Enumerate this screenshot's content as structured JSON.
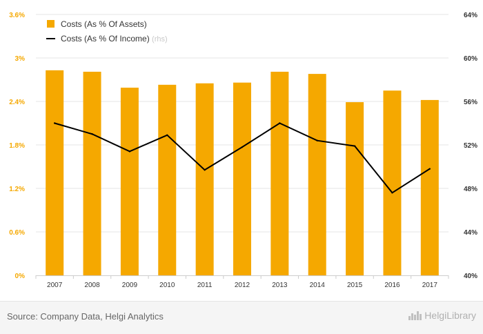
{
  "chart_data": {
    "type": "bar",
    "categories": [
      "2007",
      "2008",
      "2009",
      "2010",
      "2011",
      "2012",
      "2013",
      "2014",
      "2015",
      "2016",
      "2017"
    ],
    "series": [
      {
        "name": "Costs (As % Of Assets)",
        "type": "bar",
        "axis": "left",
        "color": "#f5a800",
        "values": [
          2.83,
          2.81,
          2.59,
          2.63,
          2.65,
          2.66,
          2.81,
          2.78,
          2.39,
          2.55,
          2.42
        ]
      },
      {
        "name": "Costs (As % Of Income)",
        "name_note": "(rhs)",
        "type": "line",
        "axis": "right",
        "color": "#000000",
        "values": [
          54.0,
          53.0,
          51.4,
          52.9,
          49.7,
          51.8,
          54.0,
          52.4,
          51.9,
          47.6,
          49.8
        ]
      }
    ],
    "y_left": {
      "ylim": [
        0,
        3.6
      ],
      "ticks": [
        0,
        0.6,
        1.2,
        1.8,
        2.4,
        3.0,
        3.6
      ],
      "tick_labels": [
        "0%",
        "0.6%",
        "1.2%",
        "1.8%",
        "2.4%",
        "3%",
        "3.6%"
      ]
    },
    "y_right": {
      "ylim": [
        40,
        64
      ],
      "ticks": [
        40,
        44,
        48,
        52,
        56,
        60,
        64
      ],
      "tick_labels": [
        "40%",
        "44%",
        "48%",
        "52%",
        "56%",
        "60%",
        "64%"
      ]
    },
    "grid": "horizontal",
    "legend_position": "top-left",
    "colors": {
      "bar": "#f5a800",
      "line": "#000000",
      "grid": "#e6e6e6",
      "left_axis_text": "#f5a800"
    }
  },
  "footer": {
    "source": "Source: Company Data, Helgi Analytics",
    "brand": "HelgiLibrary"
  }
}
